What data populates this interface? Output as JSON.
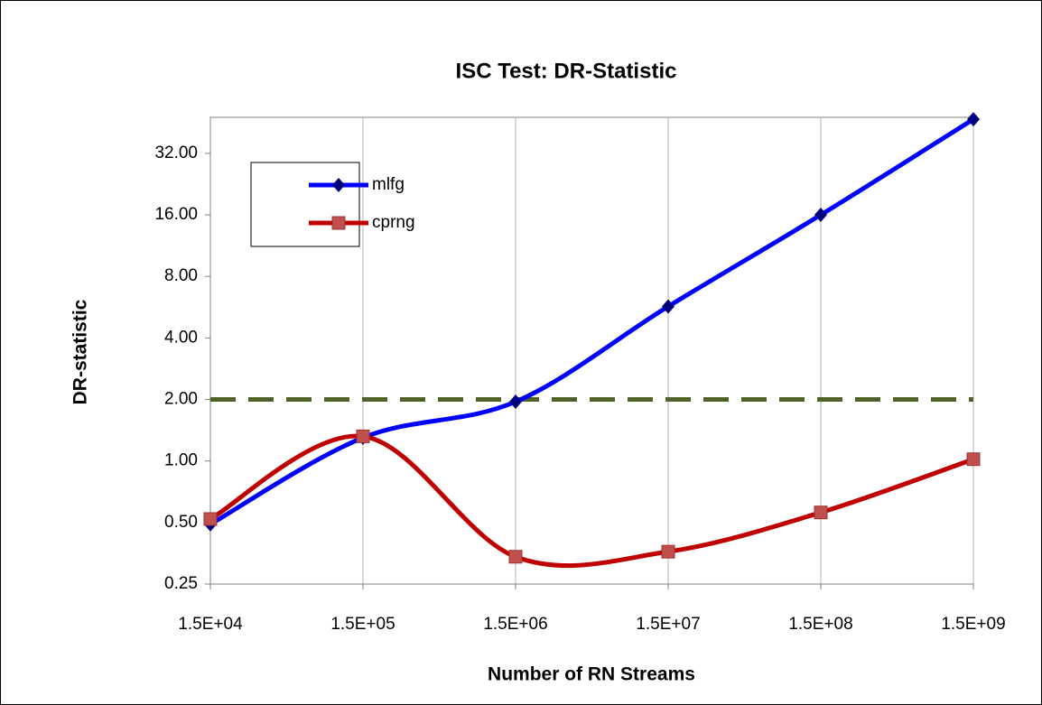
{
  "chart_data": {
    "type": "line",
    "title": "ISC Test: DR-Statistic",
    "xlabel": "Number of RN Streams",
    "ylabel": "DR-statistic",
    "categories": [
      "1.5E+04",
      "1.5E+05",
      "1.5E+06",
      "1.5E+07",
      "1.5E+08",
      "1.5E+09"
    ],
    "series": [
      {
        "name": "mlfg",
        "color": "#0000ff",
        "marker_color": "#000080",
        "marker": "diamond",
        "values": [
          0.49,
          1.3,
          1.95,
          5.7,
          16,
          47
        ]
      },
      {
        "name": "cprng",
        "color": "#c00000",
        "marker_color": "#c0504d",
        "marker": "square",
        "values": [
          0.52,
          1.32,
          0.34,
          0.36,
          0.56,
          1.02
        ]
      }
    ],
    "reference_line": {
      "value": 2,
      "color": "#4f6228"
    },
    "ylog": true,
    "ylog_base": 2,
    "ylim": [
      0.25,
      48
    ],
    "yticks": [
      {
        "value": 0.25,
        "label": "0.25"
      },
      {
        "value": 0.5,
        "label": "0.50"
      },
      {
        "value": 1,
        "label": "1.00"
      },
      {
        "value": 2,
        "label": "2.00"
      },
      {
        "value": 4,
        "label": "4.00"
      },
      {
        "value": 8,
        "label": "8.00"
      },
      {
        "value": 16,
        "label": "16.00"
      },
      {
        "value": 32,
        "label": "32.00"
      }
    ],
    "grid": "x",
    "legend": "upper left"
  }
}
